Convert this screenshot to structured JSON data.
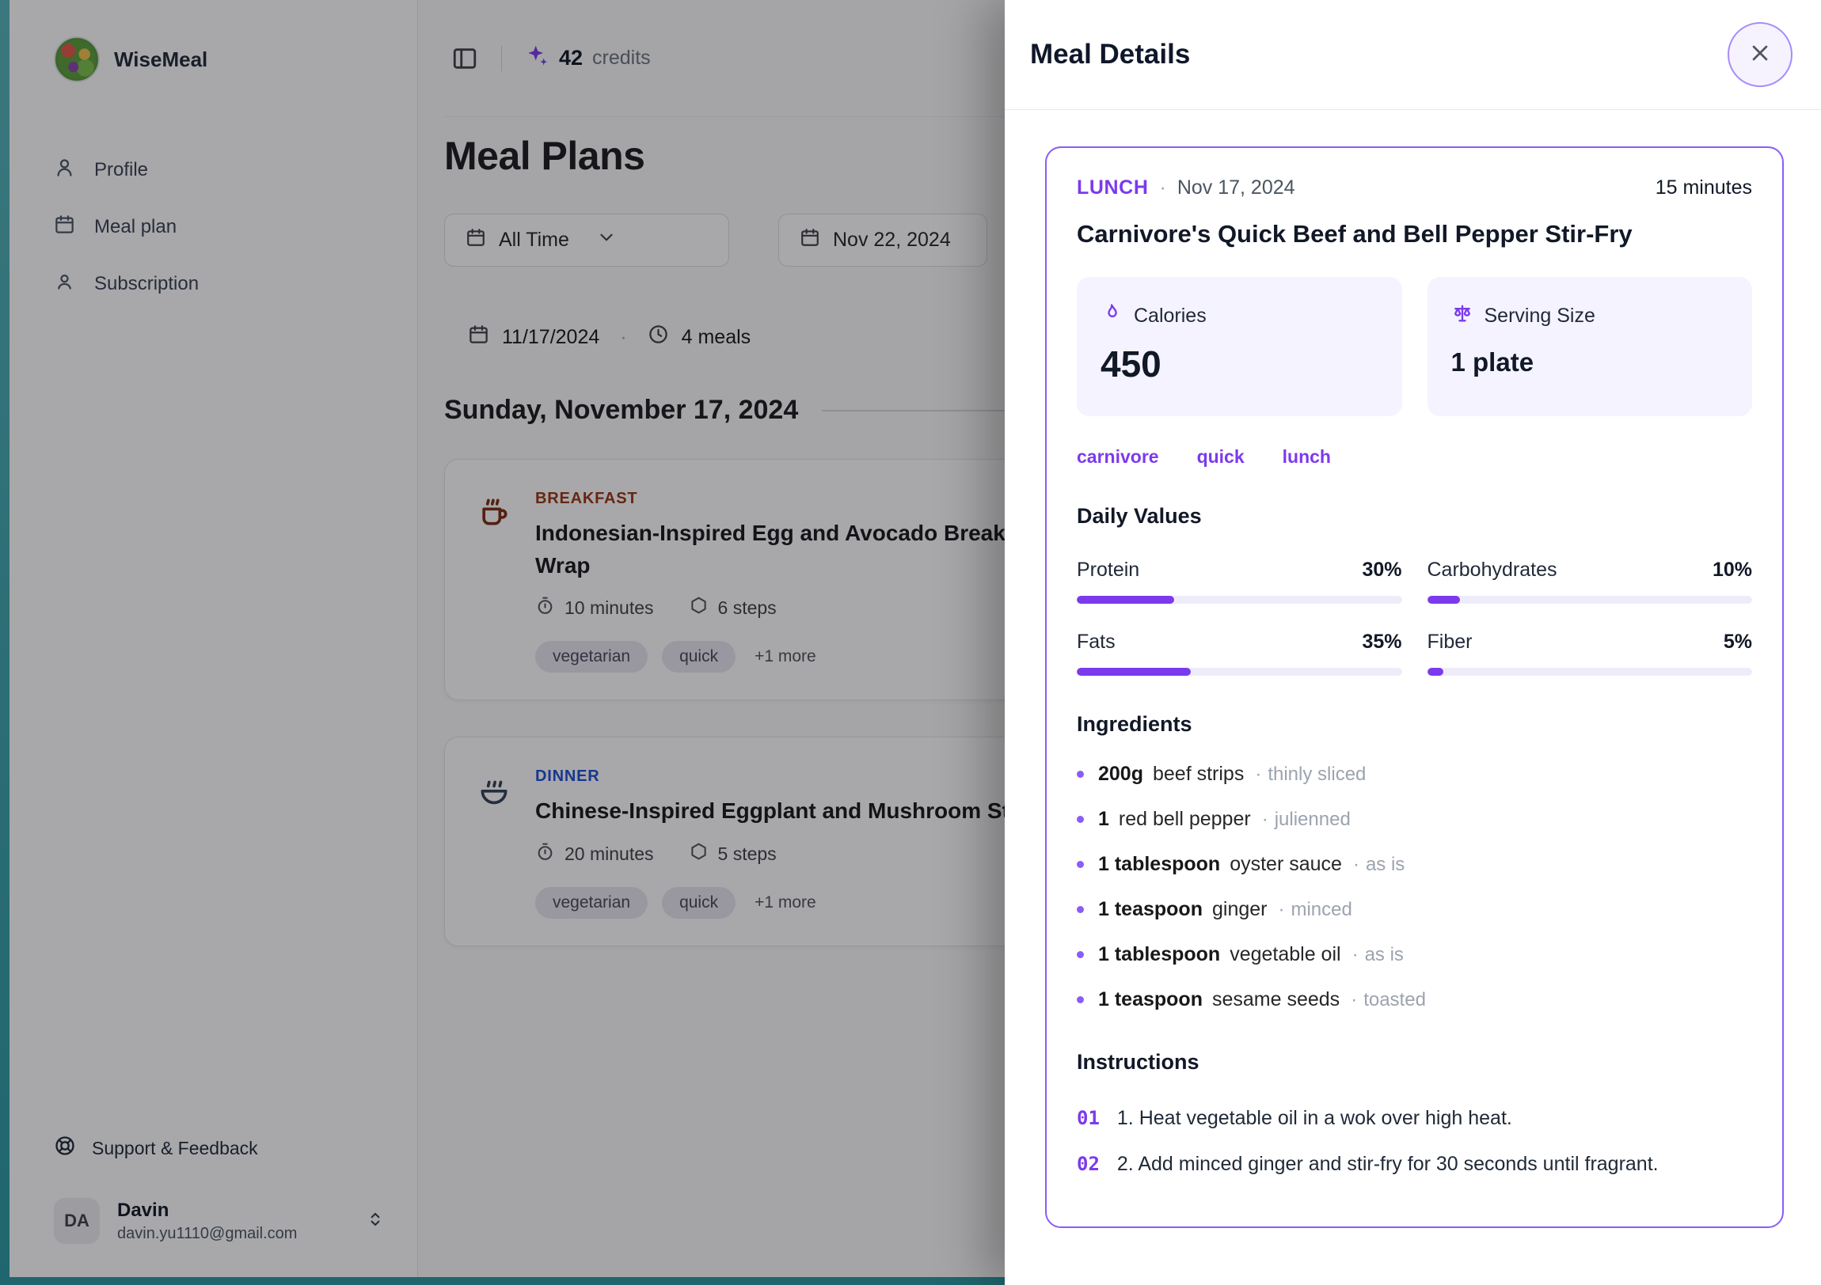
{
  "ui": {
    "dot": "·"
  },
  "colors": {
    "accent": "#7c3aed",
    "breakfast_label": "#9a3412",
    "dinner_label": "#1d4ed8",
    "lunch_label": "#7c3aed",
    "edge_teal": "#2a98a1"
  },
  "sidebar": {
    "brand": "WiseMeal",
    "items": [
      {
        "label": "Profile"
      },
      {
        "label": "Meal plan"
      },
      {
        "label": "Subscription"
      }
    ],
    "support_label": "Support & Feedback",
    "user": {
      "initials": "DA",
      "name": "Davin",
      "email": "davin.yu1110@gmail.com"
    }
  },
  "header": {
    "credits_value": "42",
    "credits_label": "credits"
  },
  "main": {
    "title": "Meal Plans",
    "filters": {
      "range": "All Time",
      "date": "Nov 22, 2024"
    },
    "summary": {
      "date": "11/17/2024",
      "meals": "4 meals"
    },
    "section_title": "Sunday, November 17, 2024",
    "meals": [
      {
        "type": "BREAKFAST",
        "title": "Indonesian-Inspired Egg and Avocado Breakfast Wrap",
        "time": "10 minutes",
        "steps": "6 steps",
        "tags": [
          "vegetarian",
          "quick"
        ],
        "more": "+1 more"
      },
      {
        "type": "DINNER",
        "title": "Chinese-Inspired Eggplant and Mushroom Stir-Fry",
        "time": "20 minutes",
        "steps": "5 steps",
        "tags": [
          "vegetarian",
          "quick"
        ],
        "more": "+1 more"
      }
    ]
  },
  "modal": {
    "title": "Meal Details",
    "meal": {
      "type": "LUNCH",
      "date": "Nov 17, 2024",
      "duration": "15 minutes",
      "name": "Carnivore's Quick Beef and Bell Pepper Stir-Fry",
      "stats": {
        "calories_label": "Calories",
        "calories_value": "450",
        "serving_label": "Serving Size",
        "serving_value": "1 plate"
      },
      "tags": [
        "carnivore",
        "quick",
        "lunch"
      ],
      "daily_values_title": "Daily Values",
      "daily_values": [
        {
          "label": "Protein",
          "percent": 30,
          "display": "30%"
        },
        {
          "label": "Carbohydrates",
          "percent": 10,
          "display": "10%"
        },
        {
          "label": "Fats",
          "percent": 35,
          "display": "35%"
        },
        {
          "label": "Fiber",
          "percent": 5,
          "display": "5%"
        }
      ],
      "ingredients_title": "Ingredients",
      "ingredients": [
        {
          "qty": "200g",
          "name": "beef strips",
          "note": "thinly sliced"
        },
        {
          "qty": "1",
          "name": "red bell pepper",
          "note": "julienned"
        },
        {
          "qty": "1 tablespoon",
          "name": "oyster sauce",
          "note": "as is"
        },
        {
          "qty": "1 teaspoon",
          "name": "ginger",
          "note": "minced"
        },
        {
          "qty": "1 tablespoon",
          "name": "vegetable oil",
          "note": "as is"
        },
        {
          "qty": "1 teaspoon",
          "name": "sesame seeds",
          "note": "toasted"
        }
      ],
      "instructions_title": "Instructions",
      "instructions": [
        {
          "num": "01",
          "text": "1. Heat vegetable oil in a wok over high heat."
        },
        {
          "num": "02",
          "text": "2. Add minced ginger and stir-fry for 30 seconds until fragrant."
        }
      ]
    }
  }
}
